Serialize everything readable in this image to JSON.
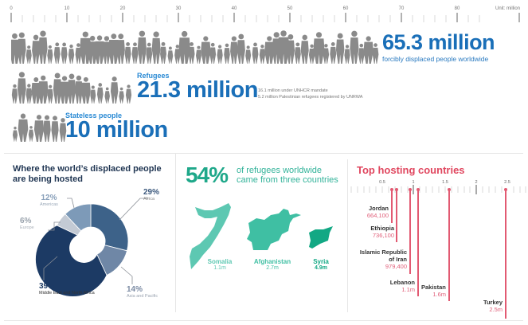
{
  "ruler": {
    "ticks": [
      "0",
      "10",
      "20",
      "30",
      "40",
      "50",
      "60",
      "70",
      "80"
    ],
    "unit": "Unit: million"
  },
  "displaced": {
    "value": "65.3 million",
    "label": "forcibly displaced people worldwide"
  },
  "refugees": {
    "label": "Refugees",
    "value": "21.3 million",
    "notes": [
      "16.1 million under UNHCR mandate",
      "5.2 million Palestinian refugees registered by UNRWA"
    ]
  },
  "stateless": {
    "label": "Stateless people",
    "value": "10 million"
  },
  "hosted": {
    "title_line1": "Where the world’s displaced people",
    "title_line2": "are being hosted",
    "segments": [
      {
        "pct": "29%",
        "label": "Africa",
        "color": "#3d6289"
      },
      {
        "pct": "14%",
        "label": "Asia and Pacific",
        "color": "#6f87a6"
      },
      {
        "pct": "39%",
        "label": "Middle East and North Africa",
        "color": "#1c3a64"
      },
      {
        "pct": "6%",
        "label": "Europe",
        "color": "#c3cad4"
      },
      {
        "pct": "12%",
        "label": "Americas",
        "color": "#7d9ab8"
      }
    ]
  },
  "origin": {
    "pct": "54%",
    "text_line1": "of refugees worldwide",
    "text_line2": "came from three countries",
    "countries": [
      {
        "name": "Somalia",
        "value": "1.1m",
        "color": "#5dc8b2"
      },
      {
        "name": "Afghanistan",
        "value": "2.7m",
        "color": "#3fbfa3"
      },
      {
        "name": "Syria",
        "value": "4.9m",
        "color": "#12a884"
      }
    ]
  },
  "hosting": {
    "title": "Top hosting countries",
    "scale_labels": [
      "0.5",
      "1",
      "1.5",
      "2",
      "2.5"
    ],
    "countries": [
      {
        "name": "Jordan",
        "value": "664,100"
      },
      {
        "name": "Ethiopia",
        "value": "736,100"
      },
      {
        "name_line1": "Islamic Republic",
        "name_line2": "of Iran",
        "value": "979,400"
      },
      {
        "name": "Lebanon",
        "value": "1.1m"
      },
      {
        "name": "Pakistan",
        "value": "1.6m"
      },
      {
        "name": "Turkey",
        "value": "2.5m"
      }
    ]
  },
  "chart_data": [
    {
      "type": "bar",
      "title": "Forcibly displaced people worldwide",
      "categories": [
        "Forcibly displaced people",
        "Refugees",
        "Stateless people"
      ],
      "values": [
        65.3,
        21.3,
        10
      ],
      "unit": "million",
      "xlim": [
        0,
        85
      ],
      "notes": [
        "16.1 million under UNHCR mandate",
        "5.2 million Palestinian refugees registered by UNRWA"
      ]
    },
    {
      "type": "pie",
      "title": "Where the world's displaced people are being hosted",
      "categories": [
        "Africa",
        "Asia and Pacific",
        "Middle East and North Africa",
        "Europe",
        "Americas"
      ],
      "values": [
        29,
        14,
        39,
        6,
        12
      ],
      "unit": "%"
    },
    {
      "type": "bar",
      "title": "54% of refugees worldwide came from three countries",
      "categories": [
        "Somalia",
        "Afghanistan",
        "Syria"
      ],
      "values": [
        1.1,
        2.7,
        4.9
      ],
      "unit": "million"
    },
    {
      "type": "bar",
      "title": "Top hosting countries",
      "categories": [
        "Jordan",
        "Ethiopia",
        "Islamic Republic of Iran",
        "Lebanon",
        "Pakistan",
        "Turkey"
      ],
      "values": [
        0.6641,
        0.7361,
        0.9794,
        1.1,
        1.6,
        2.5
      ],
      "unit": "million",
      "xlim": [
        0,
        2.7
      ],
      "tick_labels": [
        "0.5",
        "1",
        "1.5",
        "2",
        "2.5"
      ]
    }
  ]
}
